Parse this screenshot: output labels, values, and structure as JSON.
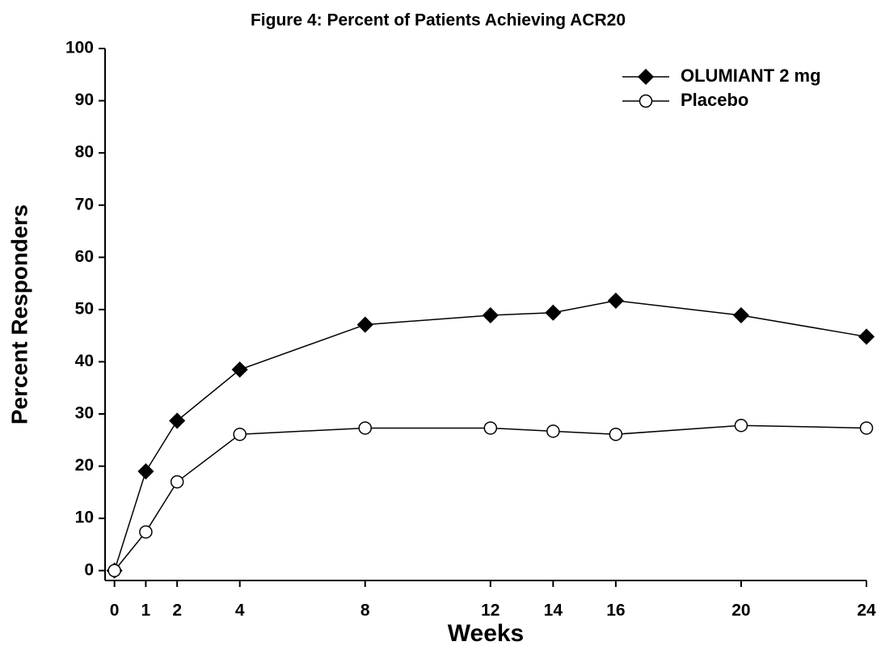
{
  "chart_data": {
    "type": "line",
    "title": "Figure 4: Percent of Patients Achieving ACR20",
    "x_label": "Weeks",
    "y_label": "Percent Responders",
    "x": [
      0,
      1,
      2,
      4,
      8,
      12,
      14,
      16,
      20,
      24
    ],
    "series": [
      {
        "name": "OLUMIANT 2 mg",
        "color": "#000000",
        "marker": "diamond",
        "marker_fill": "#000000",
        "values": [
          0,
          19,
          28.7,
          38.5,
          47.1,
          48.9,
          49.4,
          51.7,
          48.9,
          44.8
        ]
      },
      {
        "name": "Placebo",
        "color": "#000000",
        "marker": "circle",
        "marker_fill": "#ffffff",
        "values": [
          0,
          7.4,
          17,
          26.1,
          27.3,
          27.3,
          26.7,
          26.1,
          27.8,
          27.3
        ]
      }
    ],
    "xlim": [
      -0.3,
      24
    ],
    "ylim": [
      -1.9,
      100
    ],
    "xticks": [
      0,
      1,
      2,
      4,
      8,
      12,
      14,
      16,
      20,
      24
    ],
    "yticks": [
      0,
      10,
      20,
      30,
      40,
      50,
      60,
      70,
      80,
      90,
      100
    ],
    "grid": false,
    "legend": "upper right"
  }
}
